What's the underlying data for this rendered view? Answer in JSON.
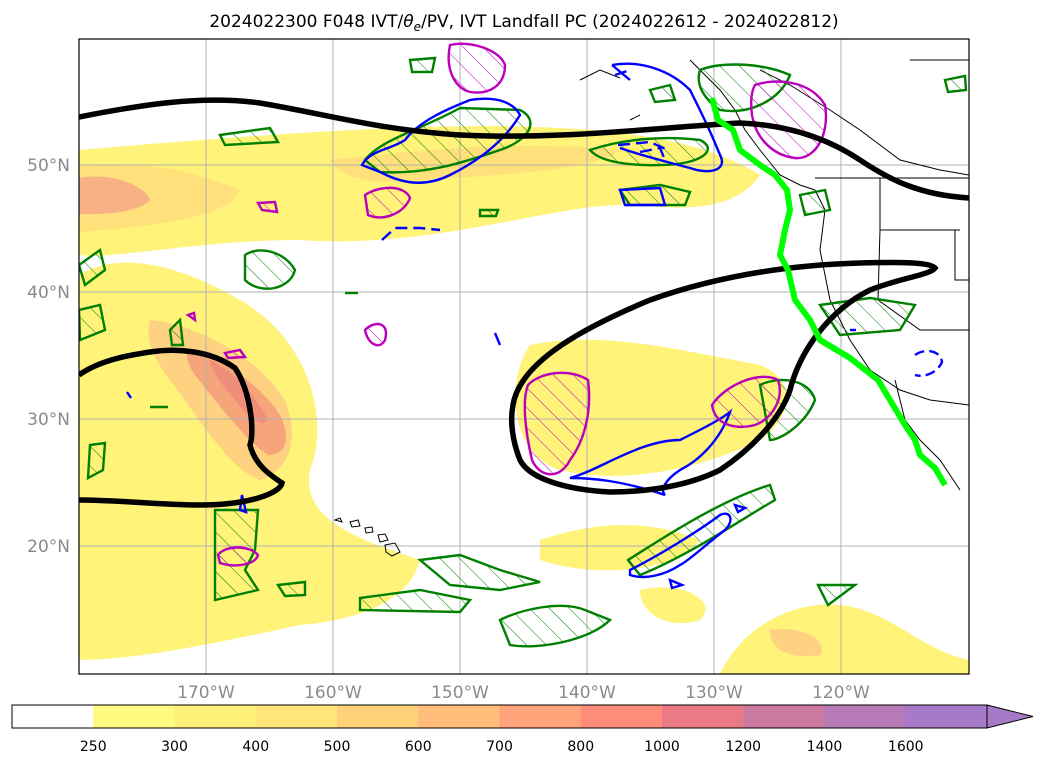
{
  "title": {
    "prefix": "2024022300 F048 IVT/",
    "theta": "θ",
    "theta_sub": "e",
    "suffix": "/PV, IVT Landfall PC (2024022612 - 2024022812)"
  },
  "map": {
    "lat_labels": [
      "50°N",
      "40°N",
      "30°N",
      "20°N"
    ],
    "lon_labels": [
      "170°W",
      "160°W",
      "150°W",
      "140°W",
      "130°W",
      "120°W"
    ]
  },
  "colorbar": {
    "ticks": [
      "250",
      "300",
      "400",
      "500",
      "600",
      "700",
      "800",
      "1000",
      "1200",
      "1400",
      "1600"
    ],
    "colors": [
      "#ffffff",
      "#fffa80",
      "#fff07a",
      "#ffe57a",
      "#ffd27a",
      "#ffbc7a",
      "#ffa47a",
      "#ff8c7a",
      "#ea7a86",
      "#cc7aa0",
      "#b77ab8",
      "#a67ac8"
    ]
  },
  "colors": {
    "ivt_low": "#fff37a",
    "ivt_mid": "#ffd98a",
    "ivt_high": "#f7a07a",
    "pc_contour": "#000000",
    "landfall_line": "#00ff00",
    "theta_e": "#008000",
    "pv_pos": "#0000ff",
    "pv_alt": "#bb00bb"
  }
}
